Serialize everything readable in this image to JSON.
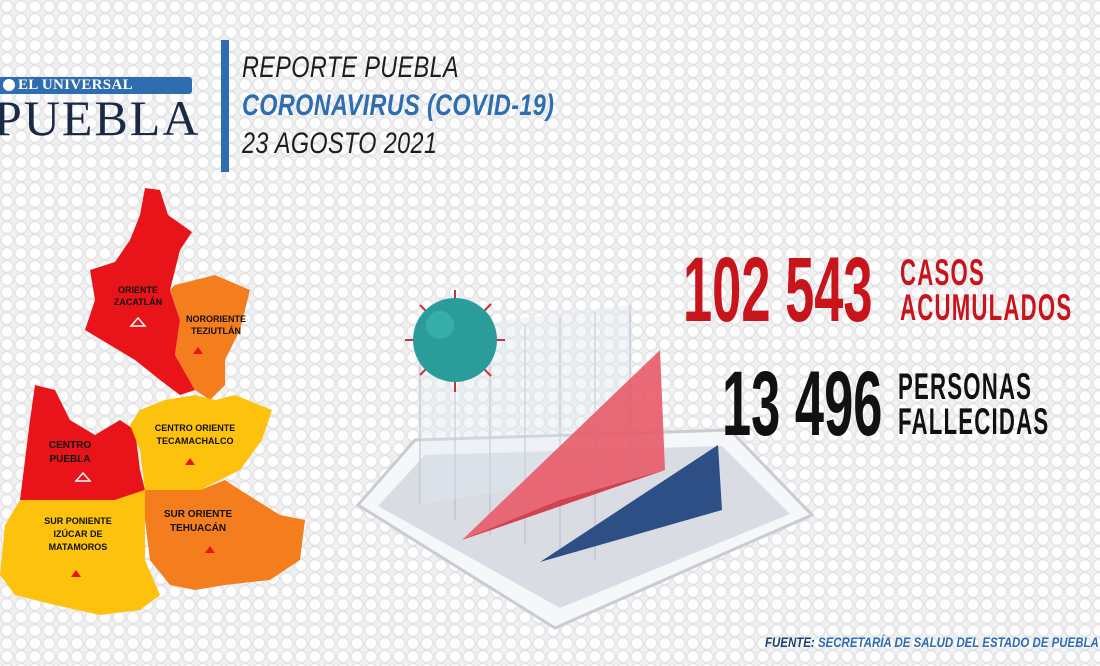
{
  "logo": {
    "brand": "EL UNIVERSAL",
    "name": "PUEBLA"
  },
  "header": {
    "line1": "REPORTE PUEBLA",
    "line2": "CORONAVIRUS (COVID-19)",
    "line3": "23 AGOSTO 2021"
  },
  "stats": {
    "cases": {
      "value": "102 543",
      "label1": "CASOS",
      "label2": "ACUMULADOS"
    },
    "deaths": {
      "value": "13 496",
      "label1": "PERSONAS",
      "label2": "FALLECIDAS"
    }
  },
  "map": {
    "regions": [
      {
        "line1": "ORIENTE",
        "line2": "ZACATLÁN",
        "color": "#e8141a"
      },
      {
        "line1": "NORORIENTE",
        "line2": "TEZIUTLÁN",
        "color": "#f47d1e"
      },
      {
        "line1": "CENTRO",
        "line2": "PUEBLA",
        "color": "#e8141a"
      },
      {
        "line1": "CENTRO ORIENTE",
        "line2": "TECAMACHALCO",
        "color": "#fcc20d"
      },
      {
        "line1": "SUR ORIENTE",
        "line2": "TEHUACÁN",
        "color": "#f47d1e"
      },
      {
        "line1": "SUR PONIENTE",
        "line2": "IZÚCAR DE",
        "line3": "MATAMOROS",
        "color": "#fcc20d"
      }
    ]
  },
  "footer": {
    "key": "FUENTE:",
    "text": "SECRETARÍA DE SALUD DEL ESTADO DE PUEBLA"
  },
  "colors": {
    "accent_blue": "#2d6db0",
    "cases_red": "#c8151b",
    "deaths_black": "#111111"
  }
}
